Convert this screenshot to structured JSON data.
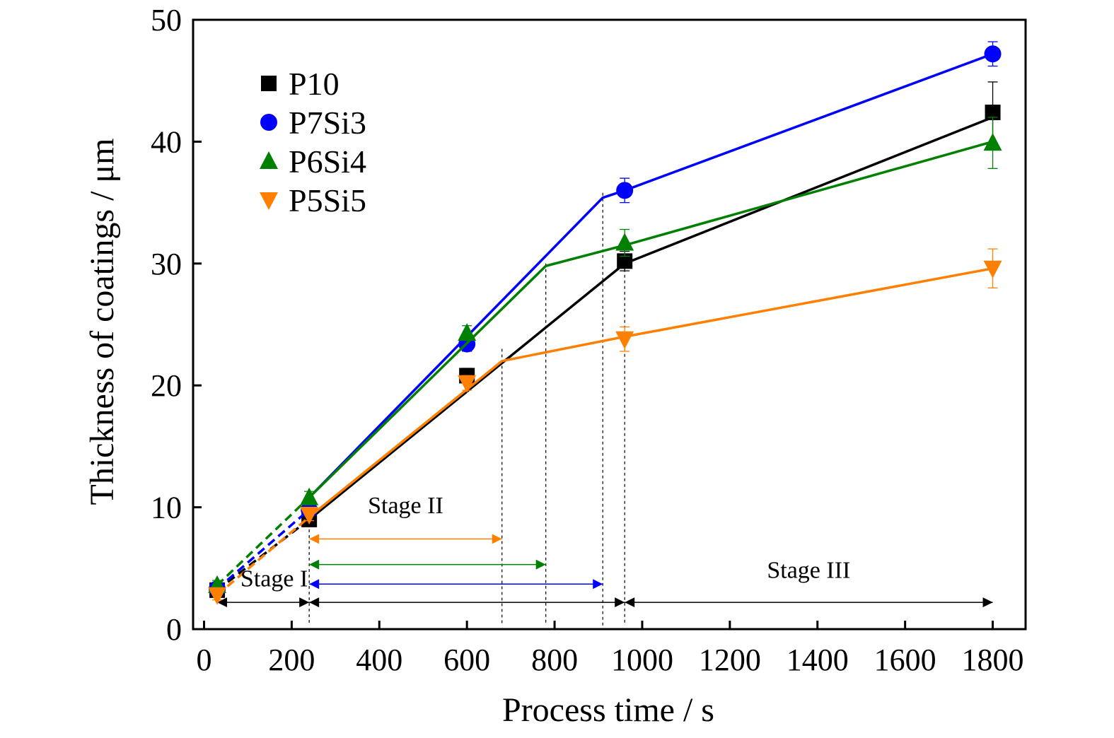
{
  "chart_data": {
    "type": "line",
    "title": "",
    "xlabel": "Process time / s",
    "ylabel": "Thickness of coatings / μm",
    "xlim": [
      -25,
      1875
    ],
    "ylim": [
      0,
      50
    ],
    "xticks": [
      0,
      200,
      400,
      600,
      800,
      1000,
      1200,
      1400,
      1600,
      1800
    ],
    "yticks": [
      0,
      10,
      20,
      30,
      40,
      50
    ],
    "grid": false,
    "legend_position": "top-left",
    "series": [
      {
        "name": "P10",
        "color": "#000000",
        "marker": "square",
        "x": [
          30,
          240,
          600,
          960,
          1800
        ],
        "y": [
          3.2,
          9.0,
          20.8,
          30.2,
          42.4
        ],
        "yerr": [
          0.4,
          0.5,
          0.6,
          0.8,
          2.5
        ],
        "fit_dashed": [
          [
            30,
            3.2
          ],
          [
            240,
            9.0
          ]
        ],
        "fit_solid": [
          [
            240,
            9.0
          ],
          [
            960,
            30.0
          ],
          [
            1800,
            42.0
          ]
        ]
      },
      {
        "name": "P7Si3",
        "color": "#0000ff",
        "marker": "circle",
        "x": [
          30,
          240,
          600,
          960,
          1800
        ],
        "y": [
          3.3,
          9.8,
          23.4,
          36.0,
          47.2
        ],
        "yerr": [
          0.4,
          0.5,
          0.6,
          1.0,
          1.0
        ],
        "fit_dashed": [
          [
            30,
            3.3
          ],
          [
            240,
            9.8
          ]
        ],
        "fit_solid": [
          [
            240,
            10.8
          ],
          [
            910,
            35.4
          ],
          [
            960,
            36.0
          ],
          [
            1800,
            47.2
          ]
        ]
      },
      {
        "name": "P6Si4",
        "color": "#008000",
        "marker": "triangle-up",
        "x": [
          30,
          240,
          600,
          960,
          1800
        ],
        "y": [
          3.6,
          10.8,
          24.3,
          31.7,
          39.9
        ],
        "yerr": [
          0.4,
          0.5,
          0.6,
          1.1,
          2.1
        ],
        "fit_dashed": [
          [
            30,
            3.6
          ],
          [
            240,
            10.8
          ]
        ],
        "fit_solid": [
          [
            240,
            10.8
          ],
          [
            780,
            29.8
          ],
          [
            960,
            31.5
          ],
          [
            1800,
            40.0
          ]
        ]
      },
      {
        "name": "P5Si5",
        "color": "#ff8000",
        "marker": "triangle-down",
        "x": [
          30,
          240,
          600,
          960,
          1800
        ],
        "y": [
          2.8,
          9.4,
          20.2,
          23.8,
          29.6
        ],
        "yerr": [
          0.4,
          0.5,
          0.6,
          1.0,
          1.6
        ],
        "fit_dashed": [
          [
            30,
            2.8
          ],
          [
            240,
            9.2
          ]
        ],
        "fit_solid": [
          [
            240,
            9.2
          ],
          [
            680,
            22.0
          ],
          [
            960,
            24.0
          ],
          [
            1800,
            29.6
          ]
        ]
      }
    ],
    "vlines": [
      {
        "x": 240,
        "y_top": 10.5
      },
      {
        "x": 680,
        "y_top": 23.0
      },
      {
        "x": 780,
        "y_top": 30.0
      },
      {
        "x": 910,
        "y_top": 35.8
      },
      {
        "x": 960,
        "y_top": 30.0
      }
    ],
    "stage_arrows": [
      {
        "x1": 30,
        "x2": 240,
        "y": 2.2,
        "color": "#000000",
        "double": true
      },
      {
        "x1": 240,
        "x2": 960,
        "y": 2.2,
        "color": "#000000",
        "double": true
      },
      {
        "x1": 960,
        "x2": 1800,
        "y": 2.2,
        "color": "#000000",
        "double": true
      },
      {
        "x1": 240,
        "x2": 680,
        "y": 7.4,
        "color": "#ff8000",
        "double": true
      },
      {
        "x1": 240,
        "x2": 780,
        "y": 5.3,
        "color": "#008000",
        "double": true
      },
      {
        "x1": 240,
        "x2": 910,
        "y": 3.7,
        "color": "#0000ff",
        "double": true
      }
    ],
    "annotations": [
      {
        "text": "Stage I",
        "x": 160,
        "y": 3.5
      },
      {
        "text": "Stage II",
        "x": 460,
        "y": 9.5
      },
      {
        "text": "Stage III",
        "x": 1380,
        "y": 4.2
      }
    ]
  }
}
